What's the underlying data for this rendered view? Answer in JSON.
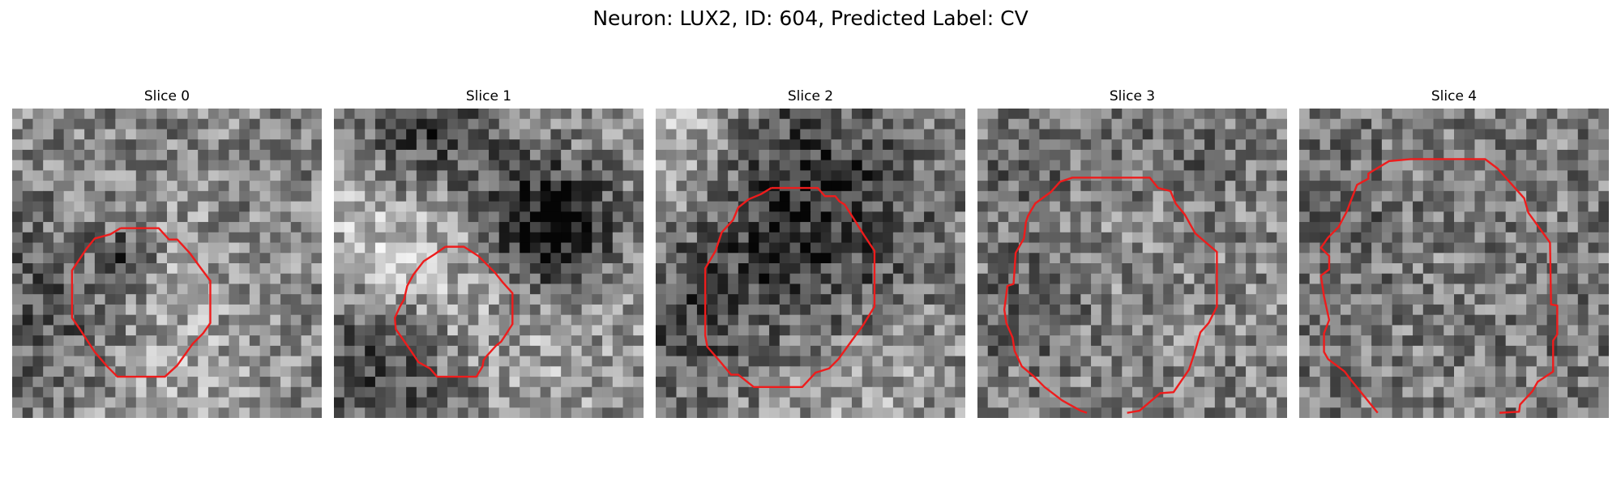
{
  "figure": {
    "title": "Neuron: LUX2, ID: 604, Predicted Label: CV"
  },
  "colors": {
    "contour": "#ee1c1c",
    "background": "#ffffff",
    "colormap": "grayscale"
  },
  "slices": [
    {
      "title": "Slice 0"
    },
    {
      "title": "Slice 1"
    },
    {
      "title": "Slice 2"
    },
    {
      "title": "Slice 3"
    },
    {
      "title": "Slice 4"
    }
  ]
}
